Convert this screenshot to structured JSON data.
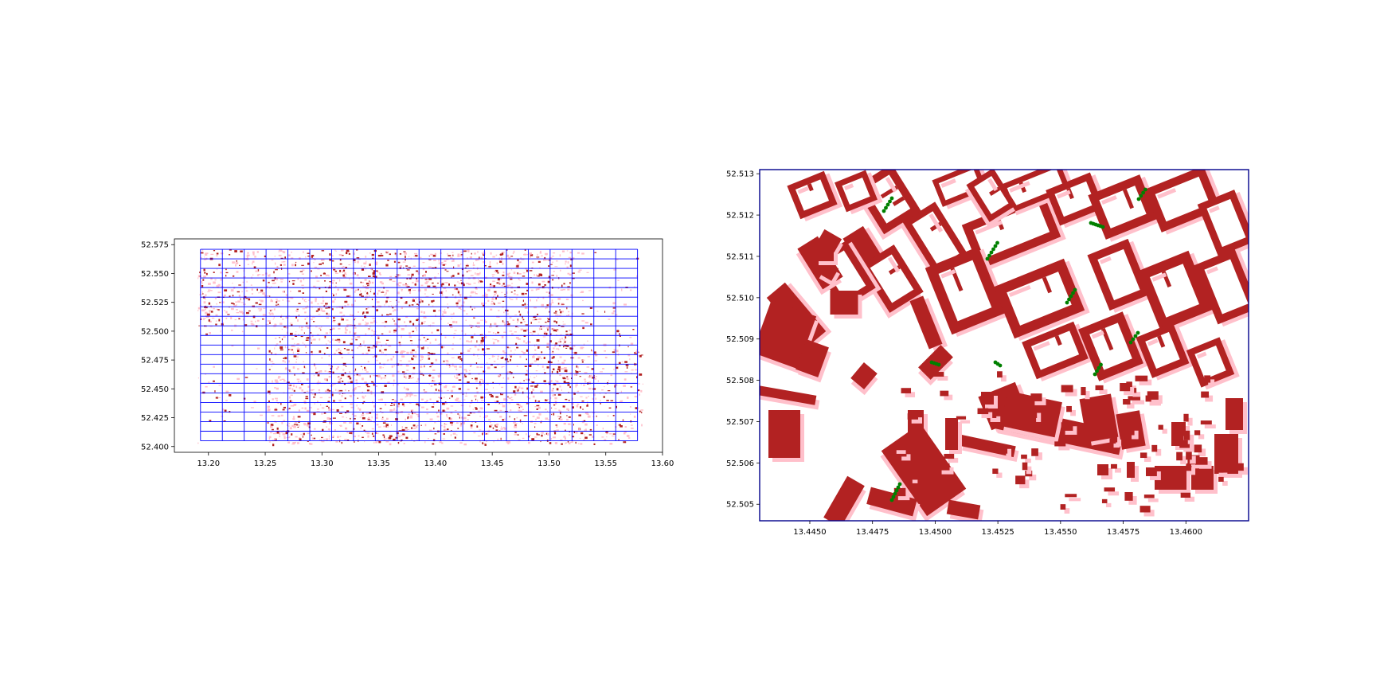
{
  "chart_data": [
    {
      "type": "map",
      "title": "",
      "xlabel": "",
      "ylabel": "",
      "xlim": [
        13.17,
        13.6
      ],
      "ylim": [
        52.395,
        52.58
      ],
      "xticks": [
        13.2,
        13.25,
        13.3,
        13.35,
        13.4,
        13.45,
        13.5,
        13.55,
        13.6
      ],
      "yticks": [
        52.4,
        52.425,
        52.45,
        52.475,
        52.5,
        52.525,
        52.55,
        52.575
      ],
      "xtick_labels": [
        "13.20",
        "13.25",
        "13.30",
        "13.35",
        "13.40",
        "13.45",
        "13.50",
        "13.55",
        "13.60"
      ],
      "ytick_labels": [
        "52.400",
        "52.425",
        "52.450",
        "52.475",
        "52.500",
        "52.525",
        "52.550",
        "52.575"
      ],
      "grid_extent": {
        "lon": [
          13.193,
          13.578
        ],
        "lat": [
          52.405,
          52.571
        ]
      },
      "grid_columns": 20,
      "grid_rows": 20,
      "building_color": "#b22222",
      "building_light_color": "#ffc0cb",
      "grid_color": "#0000ff",
      "grid": false,
      "legend": "none"
    },
    {
      "type": "map",
      "title": "",
      "xlabel": "",
      "ylabel": "",
      "xlim": [
        13.443,
        13.4625
      ],
      "ylim": [
        52.5046,
        52.5131
      ],
      "xticks": [
        13.445,
        13.4475,
        13.45,
        13.4525,
        13.455,
        13.4575,
        13.46
      ],
      "yticks": [
        52.505,
        52.506,
        52.507,
        52.508,
        52.509,
        52.51,
        52.511,
        52.512,
        52.513
      ],
      "xtick_labels": [
        "13.4450",
        "13.4475",
        "13.4500",
        "13.4525",
        "13.4550",
        "13.4575",
        "13.4600"
      ],
      "ytick_labels": [
        "52.505",
        "52.506",
        "52.507",
        "52.508",
        "52.509",
        "52.510",
        "52.511",
        "52.512",
        "52.513"
      ],
      "building_color": "#b22222",
      "shadow_color": "#ffc0cb",
      "tree_color": "#008000",
      "frame_color": "#00008b",
      "grid": false,
      "legend": "none"
    }
  ]
}
